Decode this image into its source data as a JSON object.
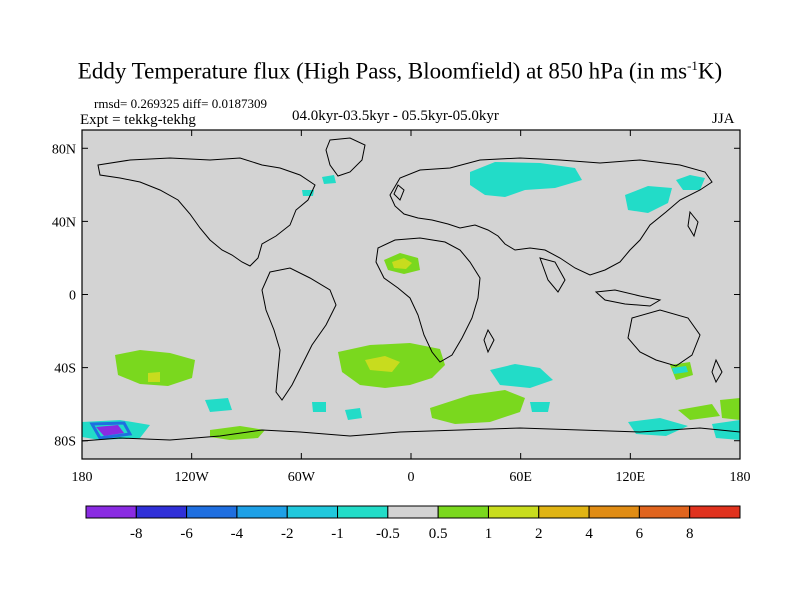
{
  "figure": {
    "title_main": "Eddy Temperature flux (High Pass, Bloomfield) at 850 hPa (in ms",
    "title_sup": "-1",
    "title_end": "K)",
    "stats": "rmsd= 0.269325 diff= 0.0187309",
    "experiment": "Expt = tekkg-tekhg",
    "period": "04.0kyr-03.5kyr - 05.5kyr-05.0kyr",
    "season": "JJA"
  },
  "map": {
    "projection": "cylindrical equidistant",
    "lon_range": [
      -180,
      180
    ],
    "lat_range": [
      -90,
      90
    ],
    "background_color": "#d3d3d3",
    "lat_ticks": [
      {
        "value": 80,
        "label": "80N"
      },
      {
        "value": 40,
        "label": "40N"
      },
      {
        "value": 0,
        "label": "0"
      },
      {
        "value": -40,
        "label": "40S"
      },
      {
        "value": -80,
        "label": "80S"
      }
    ],
    "lon_ticks": [
      {
        "value": -180,
        "label": "180"
      },
      {
        "value": -120,
        "label": "120W"
      },
      {
        "value": -60,
        "label": "60W"
      },
      {
        "value": 0,
        "label": "0"
      },
      {
        "value": 60,
        "label": "60E"
      },
      {
        "value": 120,
        "label": "120E"
      },
      {
        "value": 180,
        "label": "180"
      }
    ]
  },
  "colorbar": {
    "colors": [
      "#8a2be2",
      "#3030d8",
      "#1f6fe0",
      "#1ea0e6",
      "#20c8dc",
      "#22dcc8",
      "#d3d3d3",
      "#7ad81e",
      "#c8dc1e",
      "#e0b414",
      "#e08c14",
      "#e0641e",
      "#e0321e"
    ],
    "labels": [
      "-8",
      "-6",
      "-4",
      "-2",
      "-1",
      "-0.5",
      "0.5",
      "1",
      "2",
      "4",
      "6",
      "8"
    ]
  }
}
